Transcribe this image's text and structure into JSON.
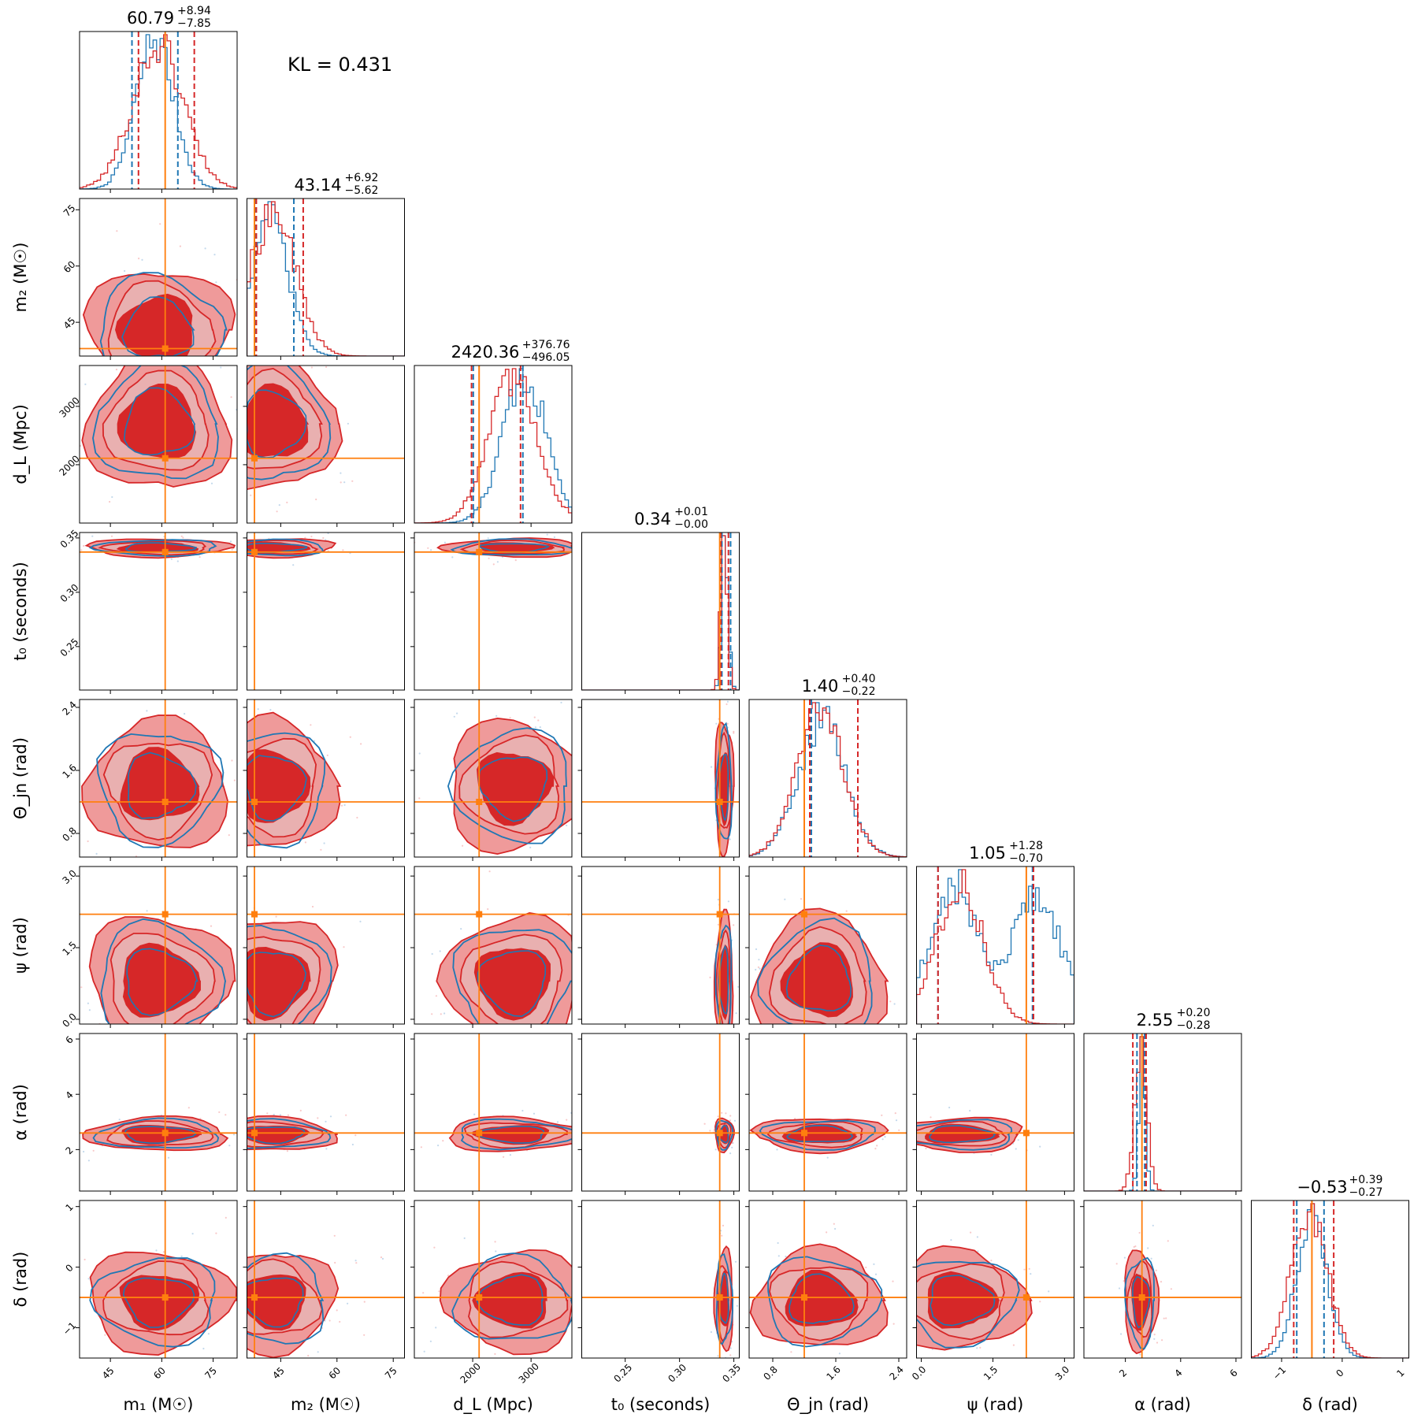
{
  "chart_data": {
    "type": "corner",
    "annotation": "KL = 0.431",
    "colors": {
      "series_a": "#d62728",
      "series_b": "#1f77b4",
      "truth": "#ff7f0e"
    },
    "params": [
      {
        "key": "m1",
        "label": "m₁ (M☉)",
        "range": [
          36,
          82
        ],
        "ticks": [
          45,
          60,
          75
        ],
        "tick_labels": [
          "45",
          "60",
          "75"
        ],
        "truth": 61,
        "median": 60.79,
        "plus": 8.94,
        "minus": 7.85,
        "title": {
          "value": "60.79",
          "up": "+8.94",
          "down": "−7.85"
        },
        "q_a": [
          53.2,
          69.5
        ],
        "q_b": [
          51.3,
          64.7
        ],
        "peak_a": 59,
        "sd_a": 7.5,
        "peak_b": 58,
        "sd_b": 5.5
      },
      {
        "key": "m2",
        "label": "m₂ (M☉)",
        "range": [
          36,
          78
        ],
        "ticks": [
          45,
          60,
          75
        ],
        "tick_labels": [
          "45",
          "60",
          "75"
        ],
        "truth": 38,
        "median": 43.14,
        "plus": 6.92,
        "minus": 5.62,
        "title": {
          "value": "43.14",
          "up": "+6.92",
          "down": "−5.62"
        },
        "q_a": [
          38.5,
          51
        ],
        "q_b": [
          38.2,
          48.5
        ],
        "peak_a": 43,
        "sd_a": 6,
        "peak_b": 42,
        "sd_b": 5
      },
      {
        "key": "dL",
        "label": "d_L (Mpc)",
        "range": [
          1000,
          3700
        ],
        "ticks": [
          2000,
          3000
        ],
        "tick_labels": [
          "2000",
          "3000"
        ],
        "truth": 2110,
        "median": 2420.36,
        "plus": 376.76,
        "minus": 496.05,
        "title": {
          "value": "2420.36",
          "up": "+376.76",
          "down": "−496.05"
        },
        "q_a": [
          1980,
          2820
        ],
        "q_b": [
          2010,
          2860
        ],
        "peak_a": 2700,
        "sd_a": 420,
        "peak_b": 2900,
        "sd_b": 380
      },
      {
        "key": "t0",
        "label": "t₀ (seconds)",
        "range": [
          0.21,
          0.355
        ],
        "ticks": [
          0.25,
          0.3,
          0.35
        ],
        "tick_labels": [
          "0.25",
          "0.30",
          "0.35"
        ],
        "truth": 0.337,
        "median": 0.34,
        "plus": 0.01,
        "minus": 0.0,
        "title": {
          "value": "0.34",
          "up": "+0.01",
          "down": "−0.00"
        },
        "q_a": [
          0.338,
          0.345
        ],
        "q_b": [
          0.339,
          0.347
        ],
        "peak_a": 0.341,
        "sd_a": 0.003,
        "peak_b": 0.342,
        "sd_b": 0.003
      },
      {
        "key": "theta",
        "label": "Θ_jn (rad)",
        "range": [
          0.5,
          2.5
        ],
        "ticks": [
          0.8,
          1.6,
          2.4
        ],
        "tick_labels": [
          "0.8",
          "1.6",
          "2.4"
        ],
        "truth": 1.2,
        "median": 1.4,
        "plus": 0.4,
        "minus": 0.22,
        "title": {
          "value": "1.40",
          "up": "+0.40",
          "down": "−0.22"
        },
        "q_a": [
          1.27,
          1.88
        ],
        "q_b": [
          1.29,
          1.88
        ],
        "peak_a": 1.4,
        "sd_a": 0.3,
        "peak_b": 1.42,
        "sd_b": 0.3
      },
      {
        "key": "psi",
        "label": "ψ (rad)",
        "range": [
          -0.1,
          3.2
        ],
        "ticks": [
          0.0,
          1.5,
          3.0
        ],
        "tick_labels": [
          "0.0",
          "1.5",
          "3.0"
        ],
        "truth": 2.2,
        "median": 1.05,
        "plus": 1.28,
        "minus": 0.7,
        "title": {
          "value": "1.05",
          "up": "+1.28",
          "down": "−0.70"
        },
        "q_a": [
          0.35,
          2.35
        ],
        "q_b": [
          0.35,
          2.33
        ],
        "peak_a": 0.8,
        "sd_a": 0.5,
        "peak_b": 2.3,
        "sd_b": 0.5
      },
      {
        "key": "alpha",
        "label": "α (rad)",
        "range": [
          0.5,
          6.2
        ],
        "ticks": [
          2,
          4,
          6
        ],
        "tick_labels": [
          "2",
          "4",
          "6"
        ],
        "truth": 2.6,
        "median": 2.55,
        "plus": 0.2,
        "minus": 0.28,
        "title": {
          "value": "2.55",
          "up": "+0.20",
          "down": "−0.28"
        },
        "q_a": [
          2.27,
          2.75
        ],
        "q_b": [
          2.42,
          2.7
        ],
        "peak_a": 2.55,
        "sd_a": 0.22,
        "peak_b": 2.6,
        "sd_b": 0.12
      },
      {
        "key": "delta",
        "label": "δ (rad)",
        "range": [
          -1.5,
          1.1
        ],
        "ticks": [
          -1,
          0,
          1
        ],
        "tick_labels": [
          "−1",
          "0",
          "1"
        ],
        "truth": -0.5,
        "median": -0.53,
        "plus": 0.39,
        "minus": 0.27,
        "title": {
          "value": "−0.53",
          "up": "+0.39",
          "down": "−0.27"
        },
        "q_a": [
          -0.8,
          -0.14
        ],
        "q_b": [
          -0.75,
          -0.3
        ],
        "peak_a": -0.55,
        "sd_a": 0.3,
        "peak_b": -0.5,
        "sd_b": 0.25
      }
    ]
  }
}
